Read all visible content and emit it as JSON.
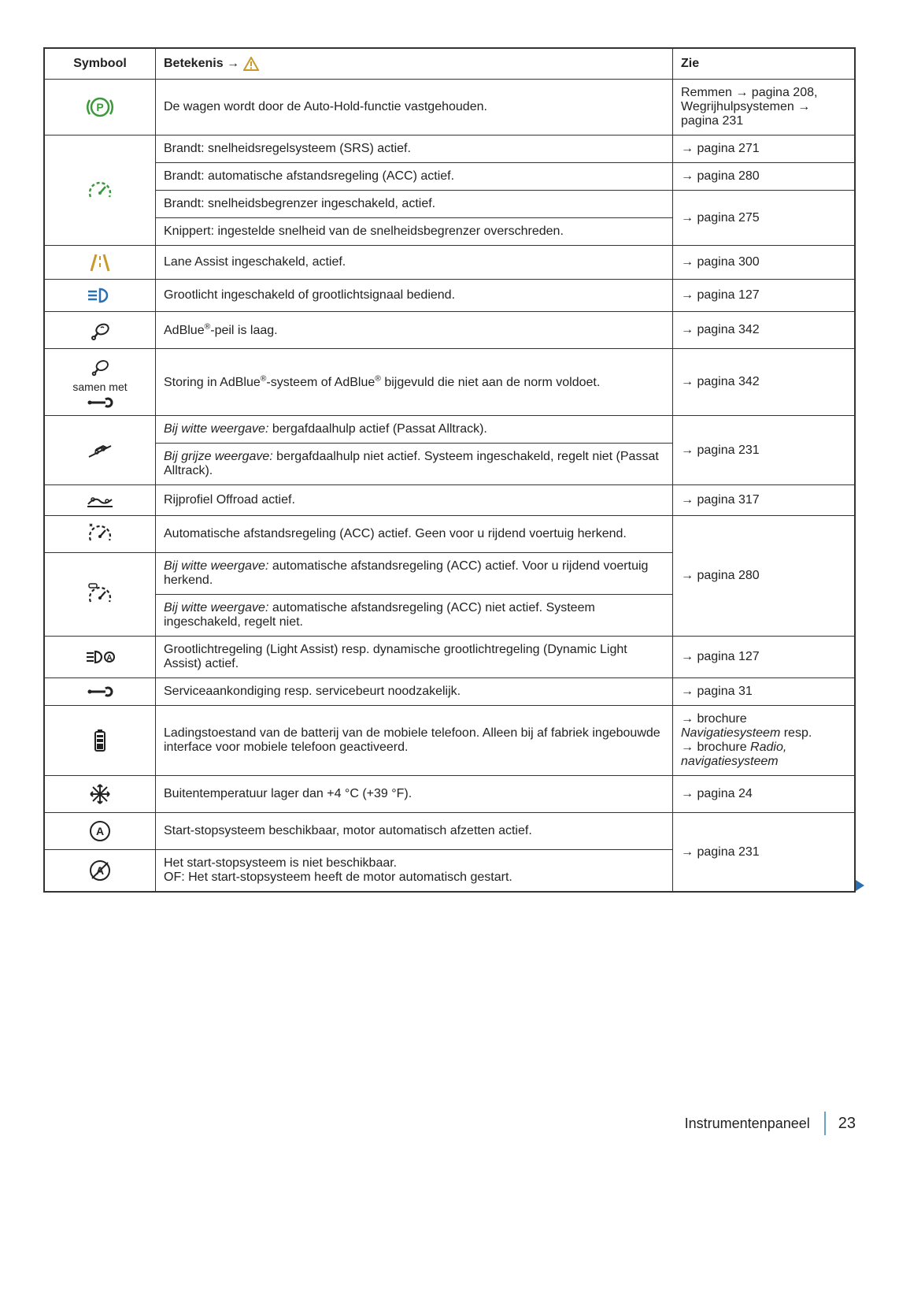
{
  "header": {
    "col1": "Symbool",
    "col2_pre": "Betekenis →",
    "col3": "Zie"
  },
  "rows": {
    "r1": {
      "desc": "De wagen wordt door de Auto-Hold-functie vastgehouden.",
      "zie": "Remmen → pagina 208,\nWegrijhulpsystemen → pagina 231"
    },
    "r2a": {
      "desc": "Brandt: snelheidsregelsysteem (SRS) actief.",
      "zie": "→ pagina 271"
    },
    "r2b": {
      "desc": "Brandt: automatische afstandsregeling (ACC) actief.",
      "zie": "→ pagina 280"
    },
    "r2c": {
      "desc": "Brandt: snelheidsbegrenzer ingeschakeld, actief."
    },
    "r2d": {
      "desc": "Knippert: ingestelde snelheid van de snelheidsbegrenzer overschreden.",
      "zie": "→ pagina 275"
    },
    "r3": {
      "desc": "Lane Assist ingeschakeld, actief.",
      "zie": "→ pagina 300"
    },
    "r4": {
      "desc": "Grootlicht ingeschakeld of grootlichtsignaal bediend.",
      "zie": "→ pagina 127"
    },
    "r5": {
      "desc_html": "AdBlue<sup>®</sup>-peil is laag.",
      "zie": "→ pagina 342"
    },
    "r6": {
      "sym_text": "samen met",
      "desc_html": "Storing in AdBlue<sup>®</sup>-systeem of AdBlue<sup>®</sup> bijgevuld die niet aan de norm voldoet.",
      "zie": "→ pagina 342"
    },
    "r7a": {
      "desc_pre": "Bij witte weergave:",
      "desc": " bergafdaalhulp actief (Passat Alltrack)."
    },
    "r7b": {
      "desc_pre": "Bij grijze weergave:",
      "desc": " bergafdaalhulp niet actief. Systeem ingeschakeld, regelt niet (Passat Alltrack).",
      "zie": "→ pagina 231"
    },
    "r8": {
      "desc": "Rijprofiel Offroad actief.",
      "zie": "→ pagina 317"
    },
    "r9a": {
      "desc": "Automatische afstandsregeling (ACC) actief. Geen voor u rijdend voertuig herkend."
    },
    "r9b": {
      "desc_pre": "Bij witte weergave:",
      "desc": " automatische afstandsregeling (ACC) actief. Voor u rijdend voertuig herkend.",
      "zie": "→ pagina 280"
    },
    "r9c": {
      "desc_pre": "Bij witte weergave:",
      "desc": " automatische afstandsregeling (ACC) niet actief. Systeem ingeschakeld, regelt niet."
    },
    "r10": {
      "desc": "Grootlichtregeling (Light Assist) resp. dynamische grootlichtregeling (Dynamic Light Assist) actief.",
      "zie": "→ pagina 127"
    },
    "r11": {
      "desc": "Serviceaankondiging resp. servicebeurt noodzakelijk.",
      "zie": "→ pagina 31"
    },
    "r12": {
      "desc": "Ladingstoestand van de batterij van de mobiele telefoon. Alleen bij af fabriek ingebouwde interface voor mobiele telefoon geactiveerd.",
      "zie_html": "→ brochure <i>Navigatiesysteem</i> resp.<br>→ brochure <i>Radio, navigatiesysteem</i>"
    },
    "r13": {
      "desc": "Buitentemperatuur lager dan +4 °C (+39 °F).",
      "zie": "→ pagina 24"
    },
    "r14a": {
      "desc": "Start-stopsysteem beschikbaar, motor automatisch afzetten actief."
    },
    "r14b": {
      "desc": "Het start-stopsysteem is niet beschikbaar.\nOF: Het start-stopsysteem heeft de motor automatisch gestart.",
      "zie": "→ pagina 231"
    }
  },
  "footer": {
    "title": "Instrumentenpaneel",
    "page": "23"
  },
  "colors": {
    "green": "#3a9a3a",
    "blue": "#2b6fb3",
    "amber": "#c79a2a",
    "grey": "#555",
    "black": "#222"
  }
}
